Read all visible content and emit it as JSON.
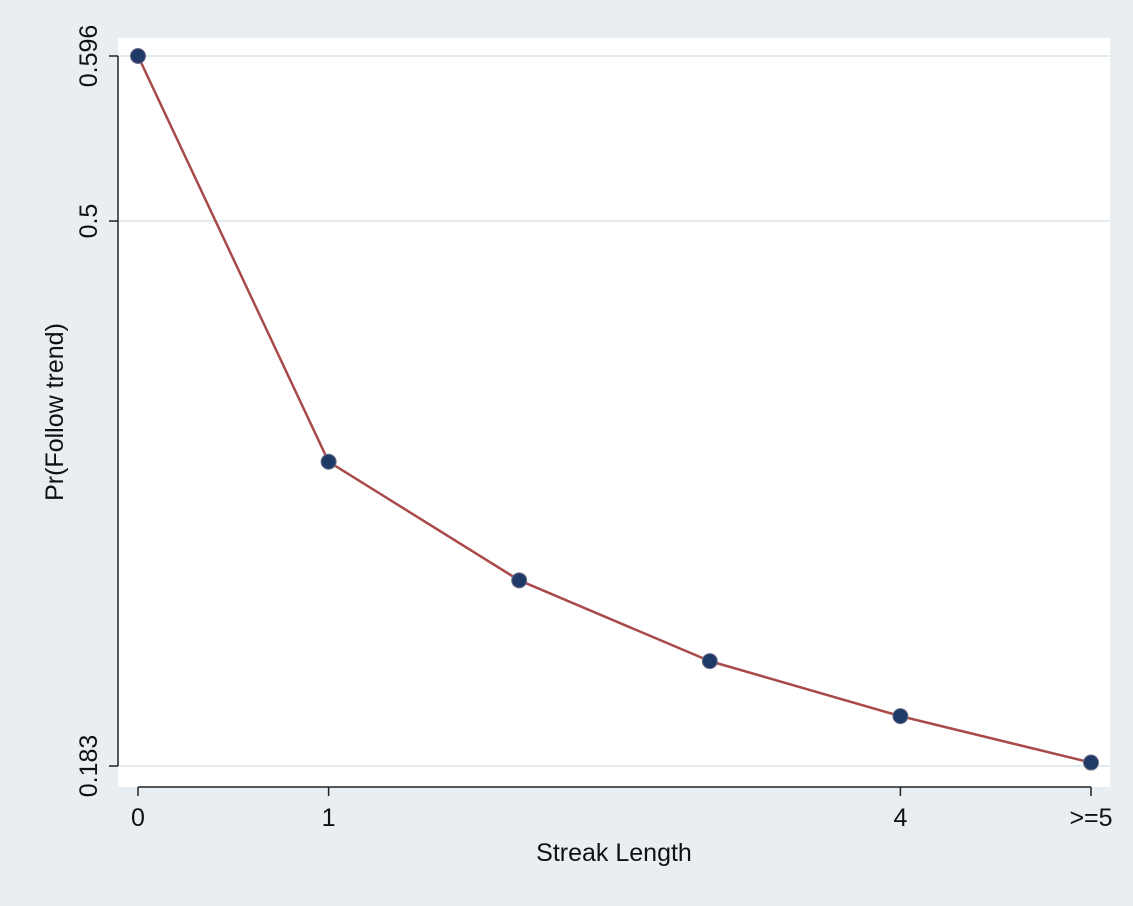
{
  "chart_data": {
    "type": "line",
    "title": "",
    "xlabel": "Streak Length",
    "ylabel": "Pr(Follow trend)",
    "x_tick_labels": [
      {
        "x": 0,
        "label": "0"
      },
      {
        "x": 1,
        "label": "1"
      },
      {
        "x": 4,
        "label": "4"
      },
      {
        "x": 5,
        "label": ">=5"
      }
    ],
    "y_tick_labels": [
      {
        "y": 0.183,
        "label": "0.183"
      },
      {
        "y": 0.5,
        "label": "0.5"
      },
      {
        "y": 0.596,
        "label": "0.596"
      }
    ],
    "xlim": [
      0,
      5
    ],
    "ylim": [
      0.183,
      0.596
    ],
    "grid": "horizontal",
    "series": [
      {
        "x": [
          0,
          1,
          2,
          3,
          4,
          5
        ],
        "values": [
          0.596,
          0.36,
          0.291,
          0.244,
          0.212,
          0.185
        ]
      }
    ],
    "colors": {
      "background": "#e8eef2",
      "plot_area": "#ffffff",
      "line": "#a84a4a",
      "marker": "#1f3a66",
      "grid": "#e3ebee"
    }
  }
}
